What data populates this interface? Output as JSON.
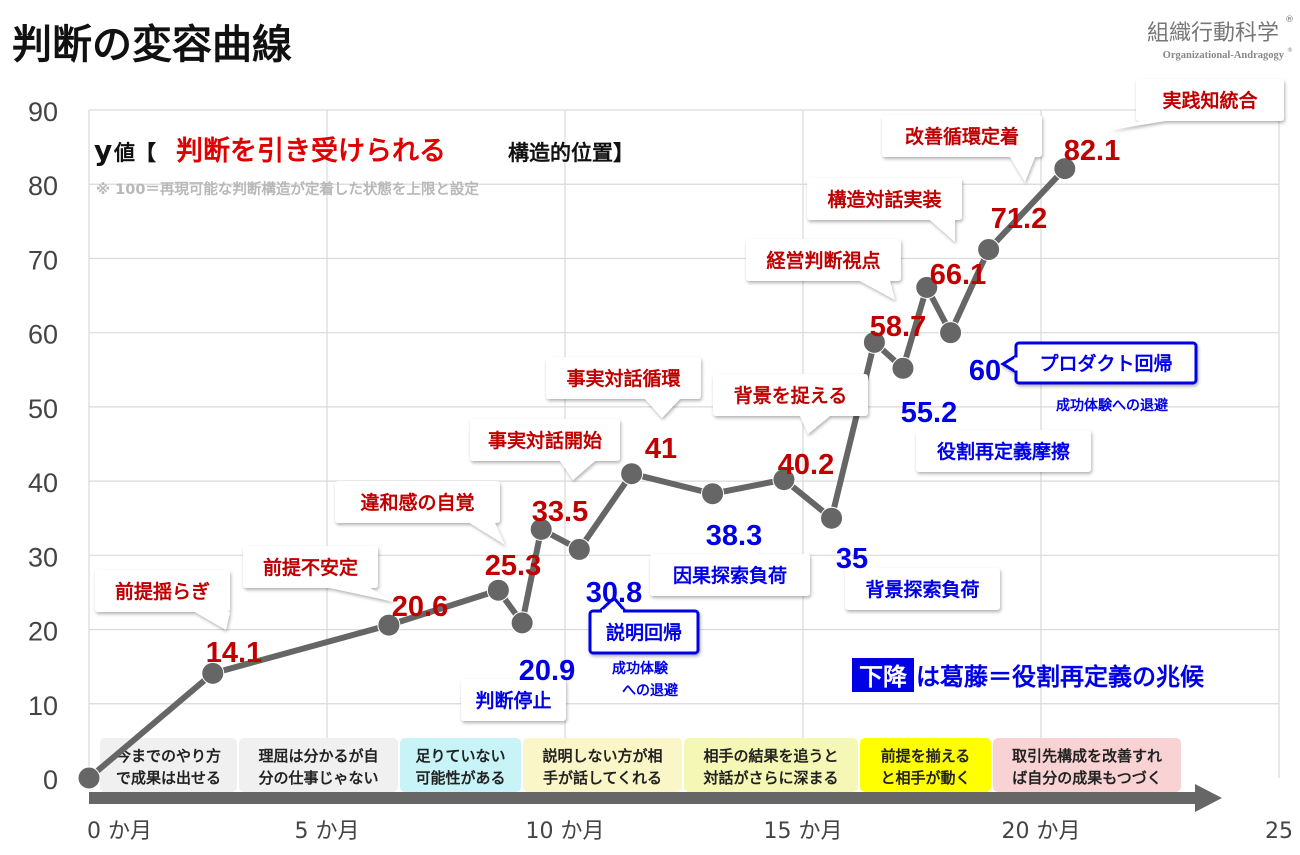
{
  "page": {
    "title": "判断の変容曲線",
    "brand": "組織行動科学",
    "brand_mark": "®",
    "brand_sub": "Organizational-Andragogy",
    "brand_sub_mark": "®"
  },
  "chart_data": {
    "type": "line",
    "xlim": [
      0,
      25
    ],
    "ylim": [
      0,
      90
    ],
    "x_ticks": [
      {
        "value": 0,
        "label": "0 か月"
      },
      {
        "value": 5,
        "label": "5 か月"
      },
      {
        "value": 10,
        "label": "10 か月"
      },
      {
        "value": 15,
        "label": "15 か月"
      },
      {
        "value": 20,
        "label": "20 か月"
      },
      {
        "value": 25,
        "label": "25"
      }
    ],
    "y_ticks": [
      0,
      10,
      20,
      30,
      40,
      50,
      60,
      70,
      80,
      90
    ],
    "grid": true,
    "line_color": "#666666",
    "up_color": "#c00000",
    "down_color": "#0000e6",
    "points": [
      {
        "x": 0,
        "y": 0,
        "dir": "start",
        "value_label": "",
        "note": ""
      },
      {
        "x": 2.6,
        "y": 14.1,
        "dir": "up",
        "value_label": "14.1",
        "note": "前提揺らぎ"
      },
      {
        "x": 6.3,
        "y": 20.6,
        "dir": "up",
        "value_label": "20.6",
        "note": "前提不安定"
      },
      {
        "x": 8.6,
        "y": 25.3,
        "dir": "up",
        "value_label": "25.3",
        "note": "違和感の自覚"
      },
      {
        "x": 9.1,
        "y": 20.9,
        "dir": "down",
        "value_label": "20.9",
        "note": "判断停止"
      },
      {
        "x": 9.5,
        "y": 33.5,
        "dir": "up",
        "value_label": "33.5",
        "note": "事実対話開始"
      },
      {
        "x": 10.3,
        "y": 30.8,
        "dir": "down",
        "value_label": "30.8",
        "note": "説明回帰",
        "sub_note": "成功体験への退避"
      },
      {
        "x": 11.4,
        "y": 41,
        "dir": "up",
        "value_label": "41",
        "note": "事実対話循環"
      },
      {
        "x": 13.1,
        "y": 38.3,
        "dir": "down",
        "value_label": "38.3",
        "note": "因果探索負荷"
      },
      {
        "x": 14.6,
        "y": 40.2,
        "dir": "up",
        "value_label": "40.2",
        "note": "背景を捉える"
      },
      {
        "x": 15.6,
        "y": 35,
        "dir": "down",
        "value_label": "35",
        "note": "背景探索負荷"
      },
      {
        "x": 16.5,
        "y": 58.7,
        "dir": "up",
        "value_label": "58.7",
        "note": "経営判断視点"
      },
      {
        "x": 17.1,
        "y": 55.2,
        "dir": "down",
        "value_label": "55.2",
        "note": "役割再定義摩擦"
      },
      {
        "x": 17.6,
        "y": 66.1,
        "dir": "up",
        "value_label": "66.1",
        "note": "構造対話実装"
      },
      {
        "x": 18.1,
        "y": 60,
        "dir": "down",
        "value_label": "60",
        "note": "プロダクト回帰",
        "sub_note": "成功体験への退避"
      },
      {
        "x": 18.9,
        "y": 71.2,
        "dir": "up",
        "value_label": "71.2",
        "note": "改善循環定着"
      },
      {
        "x": 20.5,
        "y": 82.1,
        "dir": "up",
        "value_label": "82.1",
        "note": "実践知統合"
      }
    ],
    "info_box": {
      "prefix": "y",
      "prefix2": "値【",
      "highlight": "判断を引き受けられる",
      "rest": "構造的位置】",
      "note": "※ 100＝再現可能な判断構造が定着した状態を上限と設定"
    },
    "legend": {
      "highlight": "下降",
      "text": "は葛藤＝役割再定義の兆候"
    },
    "stages": [
      {
        "line1": "今までのやり方",
        "line2": "で成果は出せる",
        "color": "#f0f0f0"
      },
      {
        "line1": "理屈は分かるが自",
        "line2": "分の仕事じゃない",
        "color": "#f0f0f0"
      },
      {
        "line1": "足りていない",
        "line2": "可能性がある",
        "color": "#c8f4f8"
      },
      {
        "line1": "説明しない方が相",
        "line2": "手が話してくれる",
        "color": "#fbf6c8"
      },
      {
        "line1": "相手の結果を追うと",
        "line2": "対話がさらに深まる",
        "color": "#f5f7b4"
      },
      {
        "line1": "前提を揃える",
        "line2": "と相手が動く",
        "color": "#ffff00"
      },
      {
        "line1": "取引先構成を改善すれ",
        "line2": "ば自分の成果もつづく",
        "color": "#f9d3d3"
      }
    ]
  }
}
